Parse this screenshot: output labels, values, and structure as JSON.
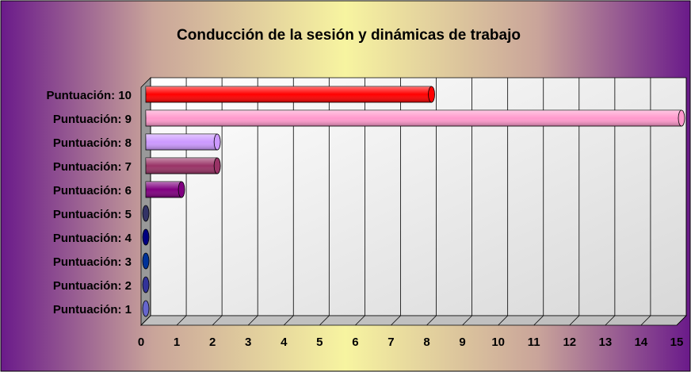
{
  "chart_data": {
    "type": "bar",
    "orientation": "horizontal",
    "title": "Conducción de la sesión y dinámicas de trabajo",
    "categories": [
      "Puntuación: 10",
      "Puntuación: 9",
      "Puntuación: 8",
      "Puntuación: 7",
      "Puntuación: 6",
      "Puntuación: 5",
      "Puntuación: 4",
      "Puntuación: 3",
      "Puntuación: 2",
      "Puntuación: 1"
    ],
    "values": [
      8,
      15,
      2,
      2,
      1,
      0,
      0,
      0,
      0,
      0
    ],
    "colors": [
      "#ff0000",
      "#ff99cc",
      "#cc99ff",
      "#993366",
      "#800080",
      "#333366",
      "#000080",
      "#003399",
      "#333399",
      "#6666cc"
    ],
    "xlim": [
      0,
      15
    ],
    "xticks": [
      0,
      1,
      2,
      3,
      4,
      5,
      6,
      7,
      8,
      9,
      10,
      11,
      12,
      13,
      14,
      15
    ],
    "grid": true
  }
}
